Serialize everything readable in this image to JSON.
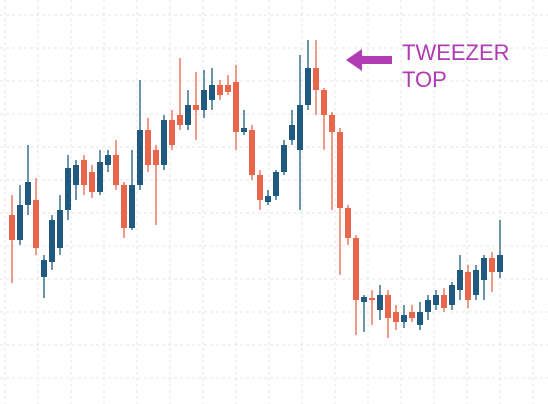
{
  "chart_data": {
    "type": "candlestick",
    "annotation": [
      "TWEEZER",
      "TOP"
    ],
    "up_color": "#1f5b80",
    "down_color": "#e8674a",
    "ylim": [
      -4,
      400
    ],
    "yticks": [
      22,
      55,
      88,
      121,
      154,
      187,
      220,
      253,
      286,
      319,
      352,
      385
    ],
    "grid": true,
    "open": [
      185,
      160,
      195,
      200,
      123,
      138,
      152,
      190,
      215,
      240,
      228,
      208,
      235,
      245,
      215,
      172,
      215,
      270,
      250,
      235,
      280,
      285,
      275,
      295,
      290,
      300,
      315,
      315,
      318,
      268,
      270,
      225,
      198,
      204,
      228,
      260,
      250,
      295,
      332,
      310,
      285,
      268,
      192,
      162,
      98,
      102,
      90,
      105,
      88,
      78,
      88,
      75,
      88,
      95,
      105,
      95,
      110,
      128,
      105,
      120,
      142,
      128
    ],
    "close": [
      160,
      195,
      218,
      152,
      140,
      180,
      190,
      232,
      235,
      215,
      208,
      238,
      245,
      215,
      172,
      215,
      270,
      235,
      235,
      280,
      255,
      275,
      295,
      290,
      310,
      315,
      305,
      308,
      268,
      272,
      225,
      200,
      204,
      228,
      255,
      275,
      295,
      332,
      310,
      285,
      268,
      192,
      162,
      100,
      103,
      100,
      105,
      82,
      78,
      85,
      82,
      88,
      100,
      105,
      92,
      115,
      130,
      100,
      130,
      142,
      128,
      145
    ],
    "high": [
      205,
      215,
      255,
      222,
      145,
      185,
      205,
      245,
      240,
      245,
      235,
      250,
      250,
      260,
      218,
      250,
      320,
      282,
      255,
      285,
      290,
      342,
      310,
      328,
      330,
      332,
      320,
      325,
      335,
      290,
      275,
      230,
      210,
      230,
      260,
      290,
      345,
      360,
      360,
      312,
      288,
      272,
      195,
      165,
      105,
      110,
      115,
      110,
      95,
      95,
      95,
      98,
      105,
      110,
      112,
      118,
      145,
      135,
      135,
      145,
      148,
      180
    ],
    "low": [
      117,
      155,
      185,
      145,
      102,
      130,
      145,
      180,
      200,
      205,
      202,
      205,
      228,
      210,
      162,
      170,
      210,
      228,
      175,
      230,
      250,
      270,
      270,
      260,
      282,
      290,
      300,
      305,
      250,
      265,
      220,
      190,
      195,
      200,
      225,
      255,
      190,
      290,
      285,
      250,
      190,
      125,
      155,
      65,
      68,
      75,
      80,
      62,
      70,
      72,
      78,
      70,
      80,
      90,
      88,
      90,
      100,
      92,
      100,
      100,
      108,
      122
    ]
  }
}
